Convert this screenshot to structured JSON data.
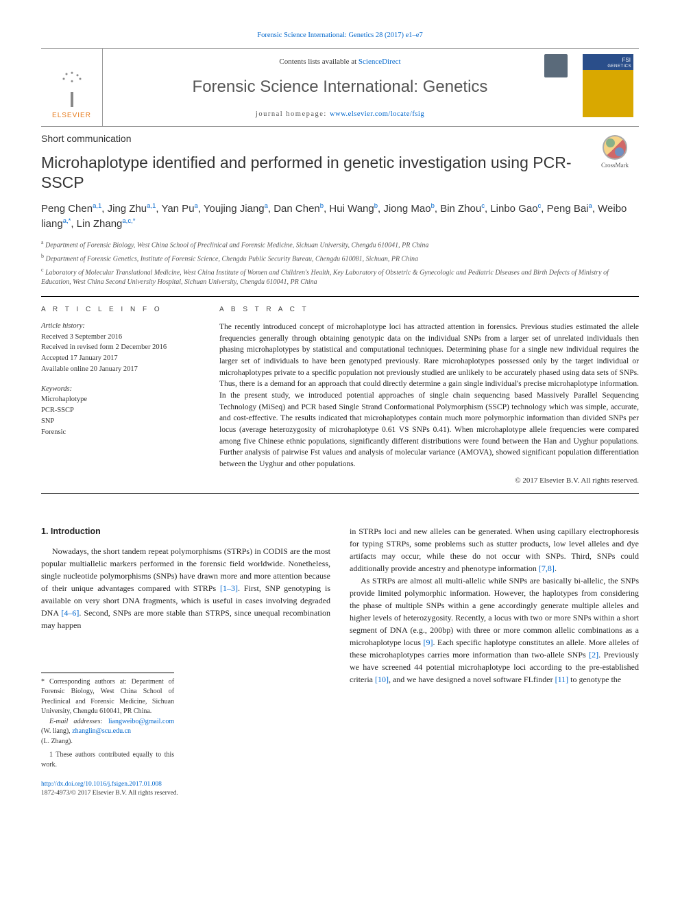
{
  "toplink": "Forensic Science International: Genetics 28 (2017) e1–e7",
  "header": {
    "contents_pre": "Contents lists available at ",
    "contents_link": "ScienceDirect",
    "journal": "Forensic Science International: Genetics",
    "hp_pre": "journal homepage: ",
    "hp_url": "www.elsevier.com/locate/fsig",
    "elsevier": "ELSEVIER"
  },
  "crossmark": "CrossMark",
  "article_type": "Short communication",
  "title": "Microhaplotype identified and performed in genetic investigation using PCR-SSCP",
  "authors_html": "Peng Chen<sup>a,1</sup>, Jing Zhu<sup>a,1</sup>, Yan Pu<sup>a</sup>, Youjing Jiang<sup>a</sup>, Dan Chen<sup>b</sup>, Hui Wang<sup>b</sup>, Jiong Mao<sup>b</sup>, Bin Zhou<sup>c</sup>, Linbo Gao<sup>c</sup>, Peng Bai<sup>a</sup>, Weibo liang<sup>a,*</sup>, Lin Zhang<sup>a,c,*</sup>",
  "affiliations": [
    {
      "sup": "a",
      "txt": "Department of Forensic Biology, West China School of Preclinical and Forensic Medicine, Sichuan University, Chengdu 610041, PR China"
    },
    {
      "sup": "b",
      "txt": "Department of Forensic Genetics, Institute of Forensic Science, Chengdu Public Security Bureau, Chengdu 610081, Sichuan, PR China"
    },
    {
      "sup": "c",
      "txt": "Laboratory of Molecular Translational Medicine, West China Institute of Women and Children's Health, Key Laboratory of Obstetric & Gynecologic and Pediatric Diseases and Birth Defects of Ministry of Education, West China Second University Hospital, Sichuan University, Chengdu 610041, PR China"
    }
  ],
  "labels": {
    "ai": "A R T I C L E   I N F O",
    "ab": "A B S T R A C T"
  },
  "history": {
    "head": "Article history:",
    "lines": [
      "Received 3 September 2016",
      "Received in revised form 2 December 2016",
      "Accepted 17 January 2017",
      "Available online 20 January 2017"
    ]
  },
  "keywords": {
    "head": "Keywords:",
    "items": [
      "Microhaplotype",
      "PCR-SSCP",
      "SNP",
      "Forensic"
    ]
  },
  "abstract": "The recently introduced concept of microhaplotype loci has attracted attention in forensics. Previous studies estimated the allele frequencies generally through obtaining genotypic data on the individual SNPs from a larger set of unrelated individuals then phasing microhaplotypes by statistical and computational techniques. Determining phase for a single new individual requires the larger set of individuals to have been genotyped previously. Rare microhaplotypes possessed only by the target individual or microhaplotypes private to a specific population not previously studied are unlikely to be accurately phased using data sets of SNPs. Thus, there is a demand for an approach that could directly determine a gain single individual's precise microhaplotype information. In the present study, we introduced potential approaches of single chain sequencing based Massively Parallel Sequencing Technology (MiSeq) and PCR based Single Strand Conformational Polymorphism (SSCP) technology which was simple, accurate, and cost-effective. The results indicated that microhaplotypes contain much more polymorphic information than divided SNPs per locus (average heterozygosity of microhaplotype 0.61 VS SNPs 0.41). When microhaplotype allele frequencies were compared among five Chinese ethnic populations, significantly different distributions were found between the Han and Uyghur populations. Further analysis of pairwise Fst values and analysis of molecular variance (AMOVA), showed significant population differentiation between the Uyghur and other populations.",
  "copyright_abs": "© 2017 Elsevier B.V. All rights reserved.",
  "intro_head": "1. Introduction",
  "intro_p1_a": "Nowadays, the short tandem repeat polymorphisms (STRPs) in CODIS are the most popular multiallelic markers performed in the forensic field worldwide. Nonetheless, single nucleotide polymorphisms (SNPs) have drawn more and more attention because of their unique advantages compared with STRPs ",
  "ref1": "[1–3]",
  "intro_p1_b": ". First, SNP genotyping is available on very short DNA fragments, which is useful in cases involving degraded DNA ",
  "ref2": "[4–6]",
  "intro_p1_c": ". Second, SNPs are more stable than STRPS, since unequal recombination may happen",
  "col2_p1_a": "in STRPs loci and new alleles can be generated. When using capillary electrophoresis for typing STRPs, some problems such as stutter products, low level alleles and dye artifacts may occur, while these do not occur with SNPs. Third, SNPs could additionally provide ancestry and phenotype information ",
  "ref3": "[7,8]",
  "col2_p1_b": ".",
  "col2_p2_a": "As STRPs are almost all multi-allelic while SNPs are basically bi-allelic, the SNPs provide limited polymorphic information. However, the haplotypes from considering the phase of multiple SNPs within a gene accordingly generate multiple alleles and higher levels of heterozygosity. Recently, a locus with two or more SNPs within a short segment of DNA (e.g., 200bp) with three or more common allelic combinations as a microhaplotype locus ",
  "ref4": "[9]",
  "col2_p2_b": ". Each specific haplotype constitutes an allele. More alleles of these microhaplotypes carries more information than two-allele SNPs ",
  "ref5": "[2]",
  "col2_p2_c": ". Previously we have screened 44 potential microhaplotype loci according to the pre-established criteria ",
  "ref6": "[10]",
  "col2_p2_d": ", and we have designed a novel software FLfinder ",
  "ref7": "[11]",
  "col2_p2_e": " to genotype the",
  "footnotes": {
    "corr": "* Corresponding authors at: Department of Forensic Biology, West China School of Preclinical and Forensic Medicine, Sichuan University, Chengdu 610041, PR China.",
    "email_pre": "E-mail addresses: ",
    "email1": "liangweibo@gmail.com",
    "email1_sfx": " (W. liang), ",
    "email2": "zhanglin@scu.edu.cn",
    "email2_sfx": "",
    "email_tail": "(L. Zhang).",
    "eq": "1 These authors contributed equally to this work."
  },
  "bottom": {
    "doi": "http://dx.doi.org/10.1016/j.fsigen.2017.01.008",
    "issn": "1872-4973/© 2017 Elsevier B.V. All rights reserved."
  },
  "colors": {
    "link": "#0066cc",
    "accent": "#e67817",
    "cover_top": "#2a4e8a",
    "cover_body": "#d9a800"
  }
}
